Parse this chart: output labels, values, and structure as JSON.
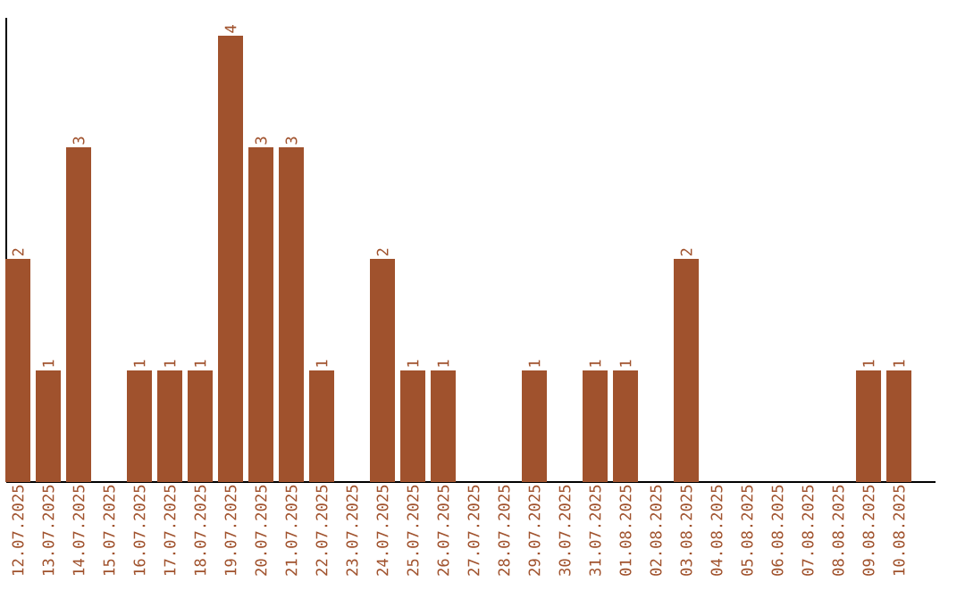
{
  "chart_data": {
    "type": "bar",
    "color": "#a0522d",
    "categories": [
      "12.07.2025",
      "13.07.2025",
      "14.07.2025",
      "15.07.2025",
      "16.07.2025",
      "17.07.2025",
      "18.07.2025",
      "19.07.2025",
      "20.07.2025",
      "21.07.2025",
      "22.07.2025",
      "23.07.2025",
      "24.07.2025",
      "25.07.2025",
      "26.07.2025",
      "27.07.2025",
      "28.07.2025",
      "29.07.2025",
      "30.07.2025",
      "31.07.2025",
      "01.08.2025",
      "02.08.2025",
      "03.08.2025",
      "04.08.2025",
      "05.08.2025",
      "06.08.2025",
      "07.08.2025",
      "08.08.2025",
      "09.08.2025",
      "10.08.2025"
    ],
    "values": [
      2,
      1,
      3,
      0,
      1,
      1,
      1,
      4,
      3,
      3,
      1,
      0,
      2,
      1,
      1,
      0,
      0,
      1,
      0,
      1,
      1,
      0,
      2,
      0,
      0,
      0,
      0,
      0,
      1,
      1
    ],
    "value_labels": [
      "2",
      "1",
      "3",
      null,
      "1",
      "1",
      "1",
      "4",
      "3",
      "3",
      "1",
      null,
      "2",
      "1",
      "1",
      null,
      null,
      "1",
      null,
      "1",
      "1",
      null,
      "2",
      null,
      null,
      null,
      null,
      null,
      "1",
      "1"
    ]
  }
}
